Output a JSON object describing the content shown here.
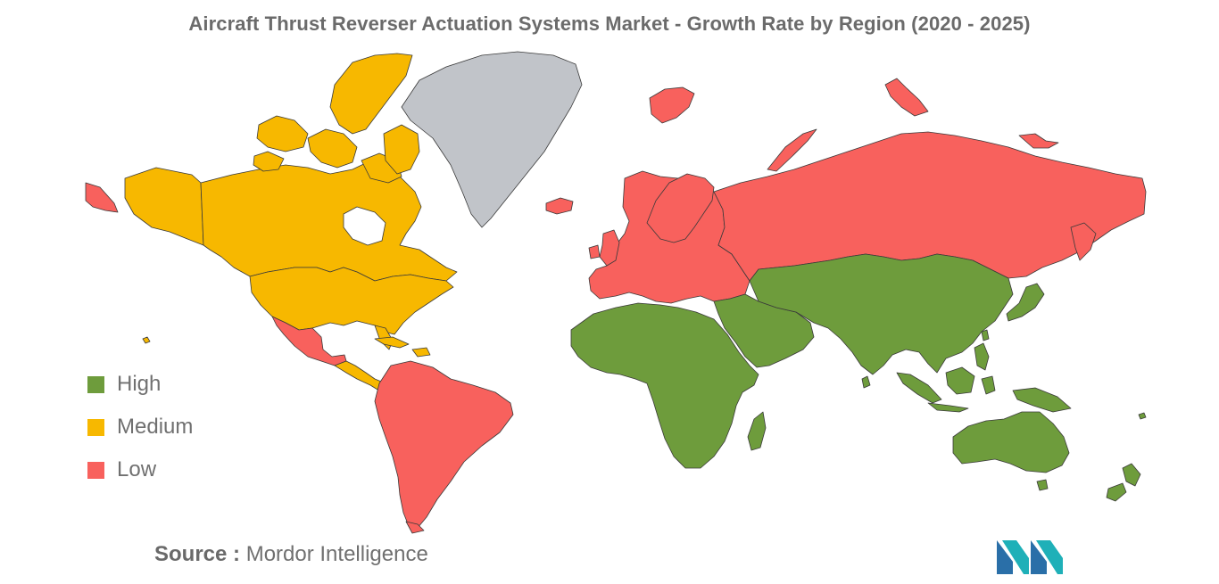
{
  "title": "Aircraft Thrust Reverser Actuation Systems Market - Growth Rate by Region (2020 - 2025)",
  "legend": [
    {
      "label": "High",
      "color": "#6e9c3c"
    },
    {
      "label": "Medium",
      "color": "#f7b800"
    },
    {
      "label": "Low",
      "color": "#f8615d"
    }
  ],
  "no_data_color": "#c1c4c9",
  "border_color": "#3a3a3a",
  "regions": {
    "north_america": "Medium",
    "central_america_caribbean": "Medium",
    "mexico": "Low",
    "south_america": "Low",
    "europe": "Low",
    "russia": "Low",
    "africa": "High",
    "middle_east": "High",
    "asia": "High",
    "oceania": "High",
    "greenland": "No data"
  },
  "source": {
    "prefix": "Source :",
    "name": "Mordor Intelligence"
  },
  "logo": {
    "colors": [
      "#2a6fa8",
      "#1fb0b8"
    ]
  }
}
